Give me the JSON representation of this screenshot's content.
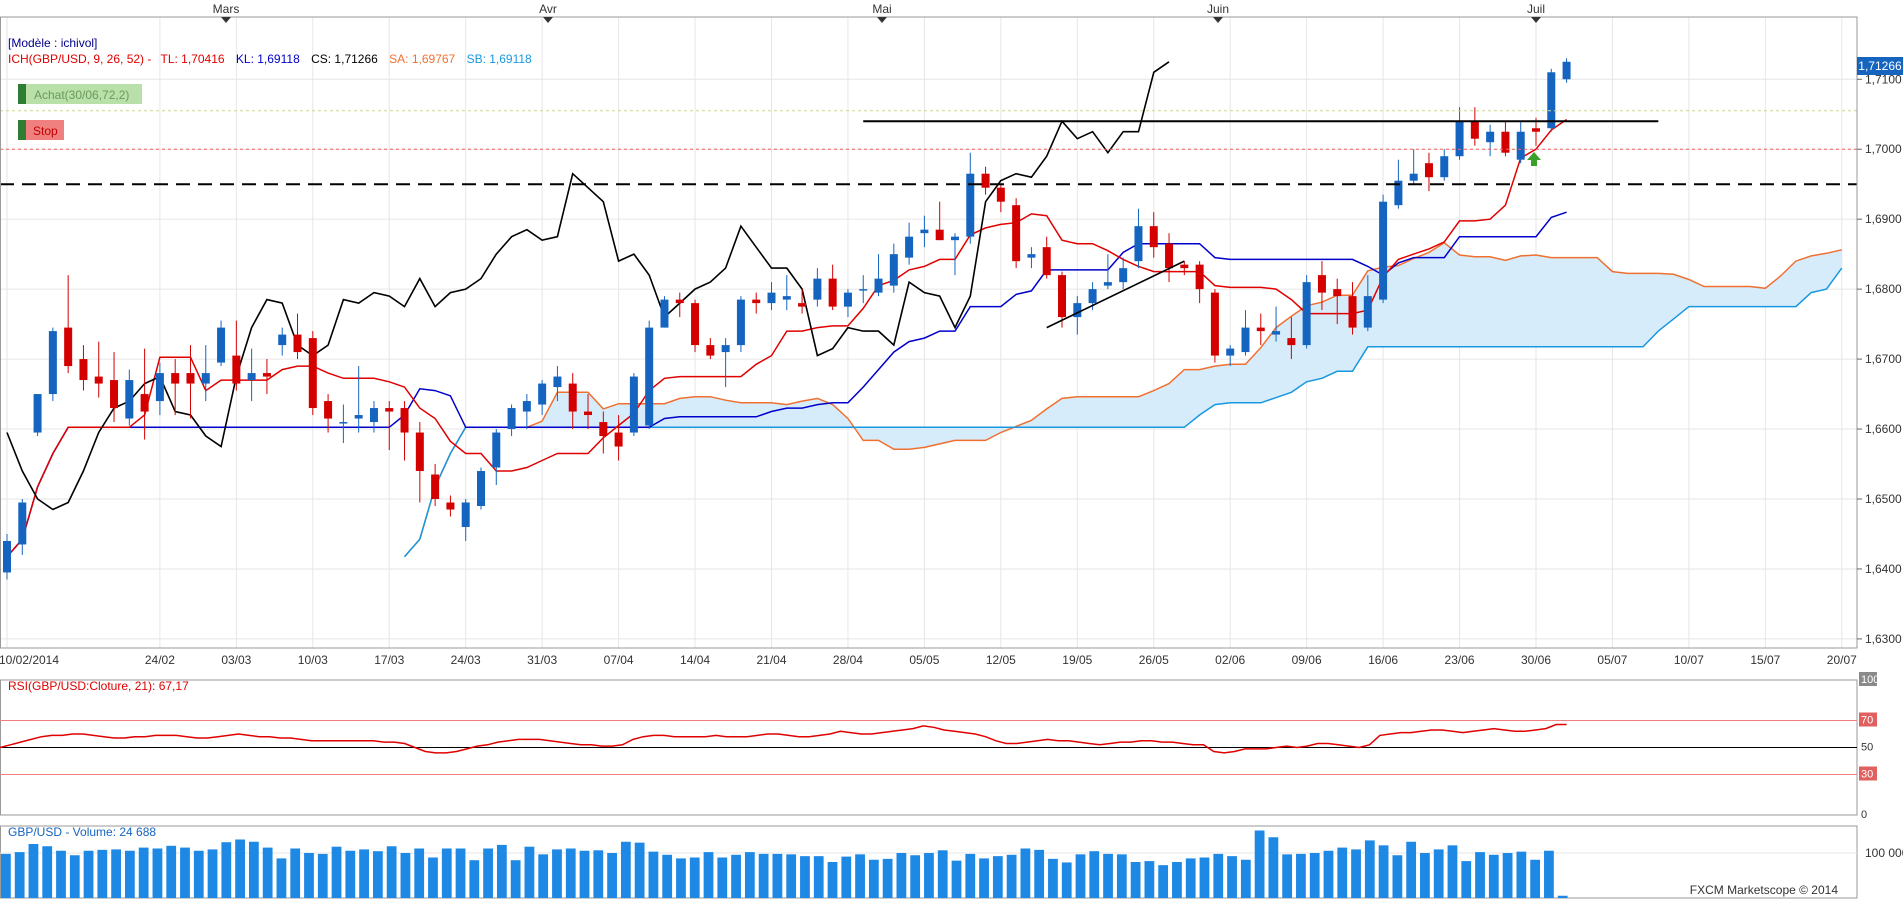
{
  "chart_data": {
    "type": "candlestick",
    "month_labels": [
      {
        "label": "Mars",
        "date": "2014-03-01"
      },
      {
        "label": "Avr",
        "date": "2014-04-01"
      },
      {
        "label": "Mai",
        "date": "2014-05-01"
      },
      {
        "label": "Juin",
        "date": "2014-06-01"
      },
      {
        "label": "Juil",
        "date": "2014-07-01"
      }
    ],
    "x_tick_labels": [
      "10/02/2014",
      "24/02",
      "03/03",
      "10/03",
      "17/03",
      "24/03",
      "31/03",
      "07/04",
      "14/04",
      "21/04",
      "28/04",
      "05/05",
      "12/05",
      "19/05",
      "26/05",
      "02/06",
      "09/06",
      "16/06",
      "23/06",
      "30/06",
      "05/07",
      "10/07",
      "15/07",
      "20/07"
    ],
    "main": {
      "model_label": "[Modèle : ichivol]",
      "indicator_name": "ICH(GBP/USD, 9, 26, 52) -",
      "legend": [
        {
          "key": "TL",
          "text": "TL: 1,70416",
          "color": "#e00000"
        },
        {
          "key": "KL",
          "text": "KL: 1,69118",
          "color": "#0000cc"
        },
        {
          "key": "CS",
          "text": "CS: 1,71266",
          "color": "#000000"
        },
        {
          "key": "SA",
          "text": "SA: 1,69767",
          "color": "#f07030"
        },
        {
          "key": "SB",
          "text": "SB: 1,69118",
          "color": "#1898e0"
        }
      ],
      "buy_label": "Achat(30/06,72,2)",
      "stop_label": "Stop",
      "y_ticks": [
        "1,7100",
        "1,7000",
        "1,6900",
        "1,6800",
        "1,6700",
        "1,6600",
        "1,6500",
        "1,6400",
        "1,6300"
      ],
      "ylim": [
        1.6287,
        1.7189
      ],
      "current_price": "1,71266",
      "candles": [
        {
          "d": "10/02",
          "o": 1.6395,
          "h": 1.645,
          "l": 1.6385,
          "c": 1.644
        },
        {
          "d": "11/02",
          "o": 1.6435,
          "h": 1.65,
          "l": 1.642,
          "c": 1.6495
        },
        {
          "d": "12/02",
          "o": 1.6595,
          "h": 1.665,
          "l": 1.659,
          "c": 1.665
        },
        {
          "d": "13/02",
          "o": 1.665,
          "h": 1.6745,
          "l": 1.664,
          "c": 1.674
        },
        {
          "d": "14/02",
          "o": 1.6745,
          "h": 1.682,
          "l": 1.668,
          "c": 1.669
        },
        {
          "d": "17/02",
          "o": 1.67,
          "h": 1.672,
          "l": 1.6655,
          "c": 1.667
        },
        {
          "d": "18/02",
          "o": 1.6675,
          "h": 1.6725,
          "l": 1.6645,
          "c": 1.6665
        },
        {
          "d": "19/02",
          "o": 1.667,
          "h": 1.671,
          "l": 1.661,
          "c": 1.663
        },
        {
          "d": "20/02",
          "o": 1.6615,
          "h": 1.6685,
          "l": 1.6605,
          "c": 1.667
        },
        {
          "d": "21/02",
          "o": 1.665,
          "h": 1.6715,
          "l": 1.6585,
          "c": 1.6625
        },
        {
          "d": "24/02",
          "o": 1.664,
          "h": 1.6695,
          "l": 1.662,
          "c": 1.668
        },
        {
          "d": "25/02",
          "o": 1.668,
          "h": 1.67,
          "l": 1.662,
          "c": 1.6665
        },
        {
          "d": "26/02",
          "o": 1.668,
          "h": 1.672,
          "l": 1.6615,
          "c": 1.6665
        },
        {
          "d": "27/02",
          "o": 1.6665,
          "h": 1.672,
          "l": 1.664,
          "c": 1.668
        },
        {
          "d": "28/02",
          "o": 1.6695,
          "h": 1.6755,
          "l": 1.669,
          "c": 1.6745
        },
        {
          "d": "03/03",
          "o": 1.6705,
          "h": 1.6755,
          "l": 1.6655,
          "c": 1.6665
        },
        {
          "d": "04/03",
          "o": 1.667,
          "h": 1.6715,
          "l": 1.664,
          "c": 1.668
        },
        {
          "d": "05/03",
          "o": 1.668,
          "h": 1.67,
          "l": 1.665,
          "c": 1.6675
        },
        {
          "d": "06/03",
          "o": 1.672,
          "h": 1.6745,
          "l": 1.6705,
          "c": 1.6735
        },
        {
          "d": "07/03",
          "o": 1.6735,
          "h": 1.6765,
          "l": 1.67,
          "c": 1.671
        },
        {
          "d": "10/03",
          "o": 1.673,
          "h": 1.674,
          "l": 1.662,
          "c": 1.663
        },
        {
          "d": "11/03",
          "o": 1.664,
          "h": 1.665,
          "l": 1.6595,
          "c": 1.6615
        },
        {
          "d": "12/03",
          "o": 1.661,
          "h": 1.6635,
          "l": 1.658,
          "c": 1.661
        },
        {
          "d": "13/03",
          "o": 1.6615,
          "h": 1.669,
          "l": 1.6595,
          "c": 1.662
        },
        {
          "d": "14/03",
          "o": 1.661,
          "h": 1.664,
          "l": 1.6595,
          "c": 1.663
        },
        {
          "d": "17/03",
          "o": 1.663,
          "h": 1.664,
          "l": 1.657,
          "c": 1.6625
        },
        {
          "d": "18/03",
          "o": 1.663,
          "h": 1.664,
          "l": 1.6555,
          "c": 1.6595
        },
        {
          "d": "19/03",
          "o": 1.6595,
          "h": 1.661,
          "l": 1.6495,
          "c": 1.654
        },
        {
          "d": "20/03",
          "o": 1.6535,
          "h": 1.655,
          "l": 1.649,
          "c": 1.65
        },
        {
          "d": "21/03",
          "o": 1.6495,
          "h": 1.6505,
          "l": 1.6475,
          "c": 1.6485
        },
        {
          "d": "24/03",
          "o": 1.646,
          "h": 1.65,
          "l": 1.644,
          "c": 1.6495
        },
        {
          "d": "25/03",
          "o": 1.649,
          "h": 1.6545,
          "l": 1.6485,
          "c": 1.654
        },
        {
          "d": "26/03",
          "o": 1.6545,
          "h": 1.66,
          "l": 1.652,
          "c": 1.6595
        },
        {
          "d": "27/03",
          "o": 1.66,
          "h": 1.6635,
          "l": 1.659,
          "c": 1.663
        },
        {
          "d": "28/03",
          "o": 1.6625,
          "h": 1.665,
          "l": 1.66,
          "c": 1.664
        },
        {
          "d": "31/03",
          "o": 1.6635,
          "h": 1.667,
          "l": 1.662,
          "c": 1.6665
        },
        {
          "d": "01/04",
          "o": 1.666,
          "h": 1.669,
          "l": 1.664,
          "c": 1.6675
        },
        {
          "d": "02/04",
          "o": 1.6665,
          "h": 1.668,
          "l": 1.66,
          "c": 1.6625
        },
        {
          "d": "03/04",
          "o": 1.6625,
          "h": 1.665,
          "l": 1.66,
          "c": 1.662
        },
        {
          "d": "04/04",
          "o": 1.661,
          "h": 1.6625,
          "l": 1.6565,
          "c": 1.659
        },
        {
          "d": "07/04",
          "o": 1.6595,
          "h": 1.662,
          "l": 1.6555,
          "c": 1.6575
        },
        {
          "d": "08/04",
          "o": 1.6595,
          "h": 1.668,
          "l": 1.659,
          "c": 1.6675
        },
        {
          "d": "09/04",
          "o": 1.6605,
          "h": 1.6755,
          "l": 1.66,
          "c": 1.6745
        },
        {
          "d": "10/04",
          "o": 1.6745,
          "h": 1.679,
          "l": 1.6745,
          "c": 1.6785
        },
        {
          "d": "11/04",
          "o": 1.6785,
          "h": 1.6795,
          "l": 1.676,
          "c": 1.678
        },
        {
          "d": "14/04",
          "o": 1.678,
          "h": 1.6785,
          "l": 1.671,
          "c": 1.672
        },
        {
          "d": "15/04",
          "o": 1.672,
          "h": 1.673,
          "l": 1.67,
          "c": 1.6705
        },
        {
          "d": "16/04",
          "o": 1.671,
          "h": 1.673,
          "l": 1.666,
          "c": 1.672
        },
        {
          "d": "17/04",
          "o": 1.672,
          "h": 1.679,
          "l": 1.671,
          "c": 1.6785
        },
        {
          "d": "18/04",
          "o": 1.6785,
          "h": 1.6795,
          "l": 1.6765,
          "c": 1.678
        },
        {
          "d": "21/04",
          "o": 1.678,
          "h": 1.681,
          "l": 1.677,
          "c": 1.6795
        },
        {
          "d": "22/04",
          "o": 1.6785,
          "h": 1.682,
          "l": 1.677,
          "c": 1.679
        },
        {
          "d": "23/04",
          "o": 1.678,
          "h": 1.68,
          "l": 1.6765,
          "c": 1.6775
        },
        {
          "d": "24/04",
          "o": 1.6785,
          "h": 1.683,
          "l": 1.6775,
          "c": 1.6815
        },
        {
          "d": "25/04",
          "o": 1.6815,
          "h": 1.6835,
          "l": 1.677,
          "c": 1.6775
        },
        {
          "d": "28/04",
          "o": 1.6775,
          "h": 1.68,
          "l": 1.676,
          "c": 1.6795
        },
        {
          "d": "29/04",
          "o": 1.68,
          "h": 1.682,
          "l": 1.678,
          "c": 1.68
        },
        {
          "d": "30/04",
          "o": 1.6795,
          "h": 1.685,
          "l": 1.679,
          "c": 1.6815
        },
        {
          "d": "01/05",
          "o": 1.6805,
          "h": 1.6865,
          "l": 1.6795,
          "c": 1.685
        },
        {
          "d": "02/05",
          "o": 1.6845,
          "h": 1.6895,
          "l": 1.6835,
          "c": 1.6875
        },
        {
          "d": "05/05",
          "o": 1.688,
          "h": 1.6905,
          "l": 1.686,
          "c": 1.6885
        },
        {
          "d": "06/05",
          "o": 1.6885,
          "h": 1.6925,
          "l": 1.687,
          "c": 1.687
        },
        {
          "d": "07/05",
          "o": 1.687,
          "h": 1.688,
          "l": 1.682,
          "c": 1.6875
        },
        {
          "d": "08/05",
          "o": 1.6875,
          "h": 1.6995,
          "l": 1.6865,
          "c": 1.6965
        },
        {
          "d": "09/05",
          "o": 1.6965,
          "h": 1.6975,
          "l": 1.6935,
          "c": 1.6945
        },
        {
          "d": "12/05",
          "o": 1.6945,
          "h": 1.695,
          "l": 1.691,
          "c": 1.6925
        },
        {
          "d": "13/05",
          "o": 1.692,
          "h": 1.693,
          "l": 1.683,
          "c": 1.684
        },
        {
          "d": "14/05",
          "o": 1.6845,
          "h": 1.686,
          "l": 1.683,
          "c": 1.685
        },
        {
          "d": "15/05",
          "o": 1.686,
          "h": 1.6875,
          "l": 1.6815,
          "c": 1.682
        },
        {
          "d": "16/05",
          "o": 1.682,
          "h": 1.6825,
          "l": 1.6745,
          "c": 1.676
        },
        {
          "d": "19/05",
          "o": 1.676,
          "h": 1.679,
          "l": 1.6735,
          "c": 1.678
        },
        {
          "d": "20/05",
          "o": 1.678,
          "h": 1.681,
          "l": 1.677,
          "c": 1.68
        },
        {
          "d": "21/05",
          "o": 1.6805,
          "h": 1.685,
          "l": 1.68,
          "c": 1.681
        },
        {
          "d": "22/05",
          "o": 1.681,
          "h": 1.6845,
          "l": 1.68,
          "c": 1.683
        },
        {
          "d": "23/05",
          "o": 1.684,
          "h": 1.6915,
          "l": 1.683,
          "c": 1.689
        },
        {
          "d": "26/05",
          "o": 1.689,
          "h": 1.691,
          "l": 1.6845,
          "c": 1.686
        },
        {
          "d": "27/05",
          "o": 1.6865,
          "h": 1.688,
          "l": 1.681,
          "c": 1.683
        },
        {
          "d": "28/05",
          "o": 1.6835,
          "h": 1.684,
          "l": 1.682,
          "c": 1.683
        },
        {
          "d": "29/05",
          "o": 1.6835,
          "h": 1.684,
          "l": 1.678,
          "c": 1.68
        },
        {
          "d": "30/05",
          "o": 1.6795,
          "h": 1.68,
          "l": 1.6695,
          "c": 1.6705
        },
        {
          "d": "02/06",
          "o": 1.6705,
          "h": 1.672,
          "l": 1.669,
          "c": 1.6715
        },
        {
          "d": "03/06",
          "o": 1.671,
          "h": 1.677,
          "l": 1.6705,
          "c": 1.6745
        },
        {
          "d": "04/06",
          "o": 1.6745,
          "h": 1.6765,
          "l": 1.672,
          "c": 1.674
        },
        {
          "d": "05/06",
          "o": 1.6735,
          "h": 1.6775,
          "l": 1.6725,
          "c": 1.674
        },
        {
          "d": "06/06",
          "o": 1.673,
          "h": 1.676,
          "l": 1.67,
          "c": 1.672
        },
        {
          "d": "09/06",
          "o": 1.672,
          "h": 1.682,
          "l": 1.6715,
          "c": 1.681
        },
        {
          "d": "10/06",
          "o": 1.682,
          "h": 1.684,
          "l": 1.677,
          "c": 1.6795
        },
        {
          "d": "11/06",
          "o": 1.68,
          "h": 1.6815,
          "l": 1.675,
          "c": 1.679
        },
        {
          "d": "12/06",
          "o": 1.679,
          "h": 1.681,
          "l": 1.6735,
          "c": 1.6745
        },
        {
          "d": "13/06",
          "o": 1.6745,
          "h": 1.682,
          "l": 1.674,
          "c": 1.679
        },
        {
          "d": "16/06",
          "o": 1.6785,
          "h": 1.6935,
          "l": 1.678,
          "c": 1.6925
        },
        {
          "d": "17/06",
          "o": 1.692,
          "h": 1.6985,
          "l": 1.6915,
          "c": 1.6955
        },
        {
          "d": "18/06",
          "o": 1.6955,
          "h": 1.7,
          "l": 1.695,
          "c": 1.6965
        },
        {
          "d": "19/06",
          "o": 1.698,
          "h": 1.6995,
          "l": 1.694,
          "c": 1.696
        },
        {
          "d": "20/06",
          "o": 1.696,
          "h": 1.7,
          "l": 1.6955,
          "c": 1.699
        },
        {
          "d": "23/06",
          "o": 1.699,
          "h": 1.706,
          "l": 1.6985,
          "c": 1.704
        },
        {
          "d": "24/06",
          "o": 1.704,
          "h": 1.706,
          "l": 1.7005,
          "c": 1.7015
        },
        {
          "d": "25/06",
          "o": 1.701,
          "h": 1.7035,
          "l": 1.699,
          "c": 1.7025
        },
        {
          "d": "26/06",
          "o": 1.7025,
          "h": 1.704,
          "l": 1.699,
          "c": 1.6995
        },
        {
          "d": "27/06",
          "o": 1.6985,
          "h": 1.704,
          "l": 1.698,
          "c": 1.7025
        },
        {
          "d": "30/06",
          "o": 1.703,
          "h": 1.7045,
          "l": 1.7005,
          "c": 1.7025
        },
        {
          "d": "01/07",
          "o": 1.703,
          "h": 1.7115,
          "l": 1.7025,
          "c": 1.711
        },
        {
          "d": "02/07",
          "o": 1.71,
          "h": 1.713,
          "l": 1.7095,
          "c": 1.7125
        }
      ]
    },
    "rsi": {
      "label": "RSI(GBP/USD:Cloture, 21): 67,17",
      "y_ticks": [
        "100",
        "70",
        "50",
        "30",
        "0"
      ],
      "levels": [
        70,
        50,
        30
      ],
      "values": [
        50,
        52,
        54,
        56,
        58,
        59,
        59,
        60,
        60,
        59,
        58,
        57,
        57,
        58,
        58,
        59,
        59,
        59,
        58,
        57,
        57,
        58,
        59,
        60,
        59,
        58,
        58,
        57,
        57,
        56,
        55,
        55,
        55,
        55,
        55,
        55,
        55,
        54,
        54,
        53,
        50,
        47,
        46,
        46,
        47,
        49,
        51,
        52,
        54,
        55,
        56,
        56,
        56,
        55,
        54,
        53,
        52,
        52,
        51,
        51,
        52,
        56,
        58,
        59,
        59,
        58,
        58,
        58,
        58,
        59,
        58,
        58,
        58,
        59,
        60,
        60,
        59,
        58,
        58,
        59,
        60,
        62,
        61,
        60,
        60,
        61,
        62,
        63,
        64,
        66,
        65,
        63,
        62,
        61,
        60,
        58,
        55,
        53,
        53,
        54,
        55,
        56,
        55,
        55,
        54,
        53,
        52,
        53,
        54,
        54,
        55,
        55,
        54,
        54,
        53,
        52,
        52,
        47,
        46,
        47,
        49,
        49,
        49,
        50,
        51,
        50,
        51,
        53,
        53,
        52,
        51,
        50,
        52,
        59,
        60,
        61,
        61,
        62,
        63,
        63,
        62,
        61,
        62,
        63,
        64,
        63,
        62,
        62,
        63,
        64,
        67,
        67
      ]
    },
    "volume": {
      "label": "GBP/USD - Volume: 24 688",
      "y_ticks": [
        "100 000"
      ],
      "values": [
        98,
        102,
        120,
        115,
        105,
        95,
        105,
        107,
        108,
        105,
        112,
        110,
        116,
        112,
        105,
        108,
        124,
        130,
        125,
        112,
        88,
        110,
        100,
        98,
        114,
        105,
        108,
        104,
        115,
        100,
        110,
        90,
        110,
        110,
        84,
        110,
        118,
        84,
        114,
        97,
        108,
        110,
        105,
        106,
        100,
        125,
        123,
        103,
        96,
        88,
        90,
        102,
        90,
        96,
        102,
        98,
        98,
        97,
        93,
        93,
        80,
        92,
        97,
        85,
        87,
        100,
        95,
        100,
        106,
        83,
        98,
        88,
        93,
        96,
        110,
        107,
        87,
        79,
        97,
        104,
        98,
        97,
        80,
        82,
        73,
        80,
        88,
        90,
        98,
        93,
        85,
        150,
        135,
        97,
        98,
        100,
        105,
        112,
        108,
        128,
        117,
        95,
        125,
        100,
        108,
        117,
        82,
        102,
        96,
        100,
        103,
        85,
        105,
        5
      ]
    },
    "watermark": "FXCM Marketscope © 2014"
  }
}
